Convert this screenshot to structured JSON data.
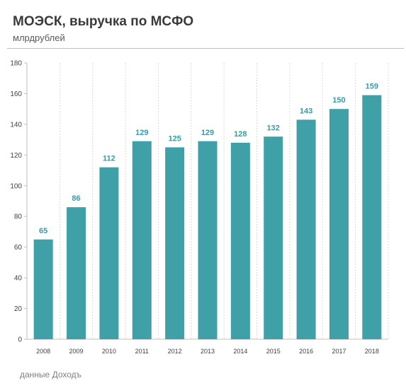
{
  "header": {
    "title": "МОЭСК, выручка по МСФО",
    "subtitle": "млрдрублей"
  },
  "footer": {
    "source": "данные Доходъ"
  },
  "colors": {
    "bar": "#40a0a8",
    "data_label": "#3a9aa4",
    "axis_text": "#404040",
    "grid": "#d9d9d9"
  },
  "chart_data": {
    "type": "bar",
    "categories": [
      "2008",
      "2009",
      "2010",
      "2011",
      "2012",
      "2013",
      "2014",
      "2015",
      "2016",
      "2017",
      "2018"
    ],
    "values": [
      65,
      86,
      112,
      129,
      125,
      129,
      128,
      132,
      143,
      150,
      159
    ],
    "ylim": [
      0,
      180
    ],
    "yticks": [
      0,
      20,
      40,
      60,
      80,
      100,
      120,
      140,
      160,
      180
    ],
    "grid": "vertical-dotted",
    "data_labels": true
  }
}
